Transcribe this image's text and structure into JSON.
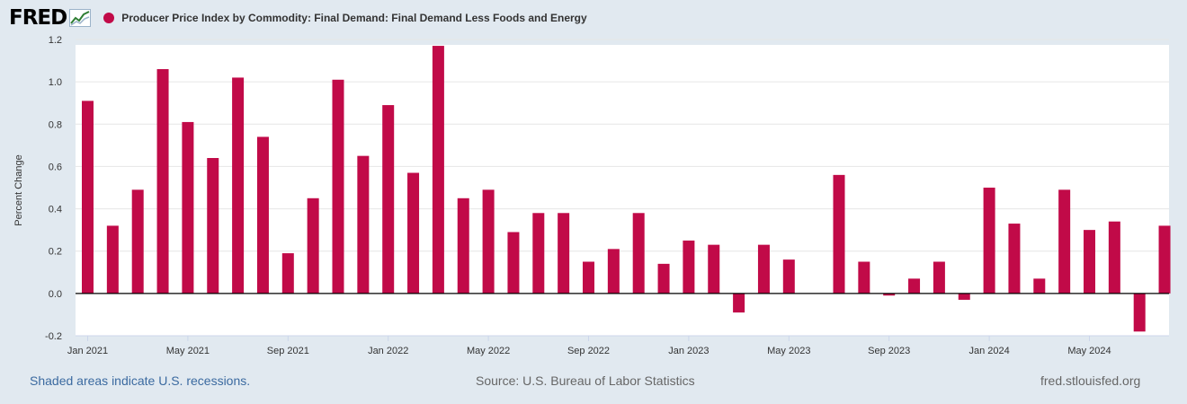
{
  "header": {
    "logo_text": "FRED",
    "series_title": "Producer Price Index by Commodity: Final Demand: Final Demand Less Foods and Energy"
  },
  "footer": {
    "recession_note": "Shaded areas indicate U.S. recessions.",
    "source": "Source: U.S. Bureau of Labor Statistics",
    "site": "fred.stlouisfed.org"
  },
  "colors": {
    "series": "#c10a48",
    "background": "#e1e9f0",
    "plot": "#ffffff"
  },
  "chart_data": {
    "type": "bar",
    "title": "Producer Price Index by Commodity: Final Demand: Final Demand Less Foods and Energy",
    "xlabel": "",
    "ylabel": "Percent Change",
    "ylim": [
      -0.2,
      1.2
    ],
    "yticks": [
      "1.2",
      "1.0",
      "0.8",
      "0.6",
      "0.4",
      "0.2",
      "0.0",
      "-0.2"
    ],
    "ytick_values": [
      1.2,
      1.0,
      0.8,
      0.6,
      0.4,
      0.2,
      0.0,
      -0.2
    ],
    "xtick_labels": [
      "Jan 2021",
      "May 2021",
      "Sep 2021",
      "Jan 2022",
      "May 2022",
      "Sep 2022",
      "Jan 2023",
      "May 2023",
      "Sep 2023",
      "Jan 2024",
      "May 2024"
    ],
    "xtick_indices": [
      0,
      4,
      8,
      12,
      16,
      20,
      24,
      28,
      32,
      36,
      40
    ],
    "categories": [
      "2021-01",
      "2021-02",
      "2021-03",
      "2021-04",
      "2021-05",
      "2021-06",
      "2021-07",
      "2021-08",
      "2021-09",
      "2021-10",
      "2021-11",
      "2021-12",
      "2022-01",
      "2022-02",
      "2022-03",
      "2022-04",
      "2022-05",
      "2022-06",
      "2022-07",
      "2022-08",
      "2022-09",
      "2022-10",
      "2022-11",
      "2022-12",
      "2023-01",
      "2023-02",
      "2023-03",
      "2023-04",
      "2023-05",
      "2023-06",
      "2023-07",
      "2023-08",
      "2023-09",
      "2023-10",
      "2023-11",
      "2023-12",
      "2024-01",
      "2024-02",
      "2024-03",
      "2024-04",
      "2024-05",
      "2024-06",
      "2024-07",
      "2024-08"
    ],
    "values": [
      0.91,
      0.32,
      0.49,
      1.06,
      0.81,
      0.64,
      1.02,
      0.74,
      0.19,
      0.45,
      1.01,
      0.65,
      0.89,
      0.57,
      1.17,
      0.45,
      0.49,
      0.29,
      0.38,
      0.38,
      0.15,
      0.21,
      0.38,
      0.14,
      0.25,
      0.23,
      -0.09,
      0.23,
      0.16,
      0.0,
      0.56,
      0.15,
      -0.01,
      0.07,
      0.15,
      -0.03,
      0.5,
      0.33,
      0.07,
      0.49,
      0.3,
      0.34,
      -0.18,
      0.32
    ]
  }
}
